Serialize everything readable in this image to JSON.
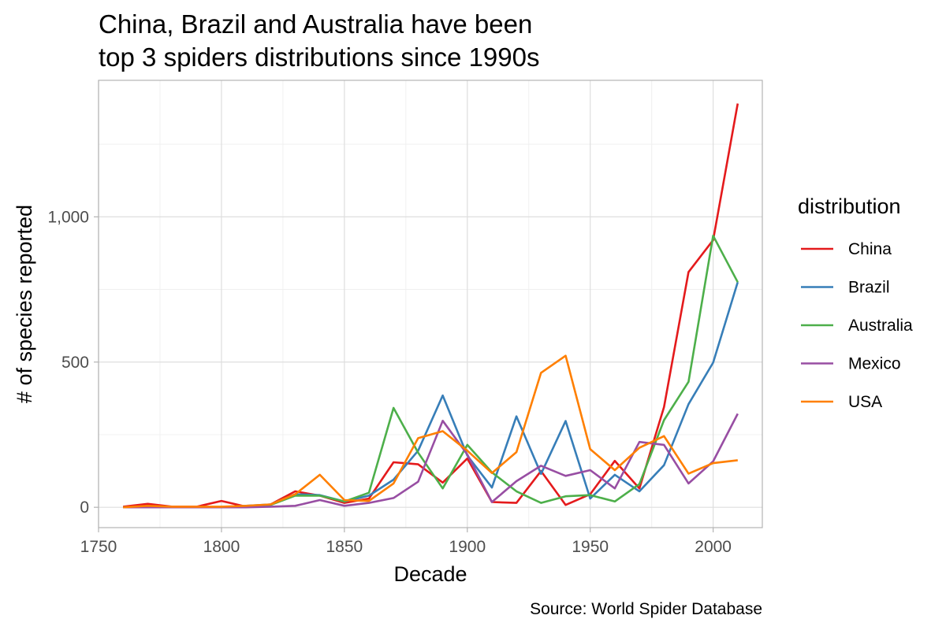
{
  "chart_data": {
    "type": "line",
    "title_lines": [
      "China, Brazil and Australia have been",
      "top 3 spiders distributions since 1990s"
    ],
    "xlabel": "Decade",
    "ylabel": "# of species reported",
    "caption": "Source: World Spider Database",
    "xlim": [
      1750,
      2020
    ],
    "ylim": [
      -70,
      1470
    ],
    "x_ticks": [
      1750,
      1800,
      1850,
      1900,
      1950,
      2000
    ],
    "x_tick_labels": [
      "1750",
      "1800",
      "1850",
      "1900",
      "1950",
      "2000"
    ],
    "y_ticks": [
      0,
      500,
      1000
    ],
    "y_tick_labels": [
      "0",
      "500",
      "1,000"
    ],
    "grid": true,
    "legend_title": "distribution",
    "legend_position": "right",
    "x": [
      1760,
      1770,
      1780,
      1790,
      1800,
      1810,
      1820,
      1830,
      1840,
      1850,
      1860,
      1870,
      1880,
      1890,
      1900,
      1910,
      1920,
      1930,
      1940,
      1950,
      1960,
      1970,
      1980,
      1990,
      2000,
      2010
    ],
    "series": [
      {
        "name": "China",
        "color": "#e41a1c",
        "values": [
          2,
          12,
          2,
          2,
          22,
          2,
          10,
          55,
          40,
          15,
          30,
          155,
          148,
          85,
          168,
          18,
          15,
          125,
          8,
          45,
          160,
          65,
          345,
          810,
          920,
          1390
        ]
      },
      {
        "name": "Brazil",
        "color": "#377eb8",
        "values": [
          0,
          0,
          0,
          0,
          0,
          5,
          10,
          45,
          42,
          20,
          40,
          95,
          195,
          385,
          178,
          68,
          313,
          115,
          297,
          30,
          112,
          55,
          145,
          355,
          498,
          775
        ]
      },
      {
        "name": "Australia",
        "color": "#4daf4a",
        "values": [
          0,
          0,
          0,
          0,
          0,
          2,
          8,
          40,
          40,
          20,
          50,
          342,
          188,
          65,
          215,
          120,
          55,
          15,
          38,
          42,
          20,
          80,
          300,
          432,
          935,
          775
        ]
      },
      {
        "name": "Mexico",
        "color": "#984ea3",
        "values": [
          0,
          0,
          0,
          0,
          0,
          0,
          2,
          5,
          25,
          5,
          15,
          32,
          88,
          298,
          182,
          18,
          90,
          143,
          108,
          128,
          65,
          225,
          215,
          82,
          158,
          322
        ]
      },
      {
        "name": "USA",
        "color": "#ff7f00",
        "values": [
          0,
          5,
          2,
          2,
          2,
          5,
          10,
          45,
          112,
          25,
          22,
          82,
          238,
          262,
          195,
          118,
          190,
          463,
          522,
          200,
          128,
          205,
          245,
          116,
          152,
          162
        ]
      }
    ]
  }
}
